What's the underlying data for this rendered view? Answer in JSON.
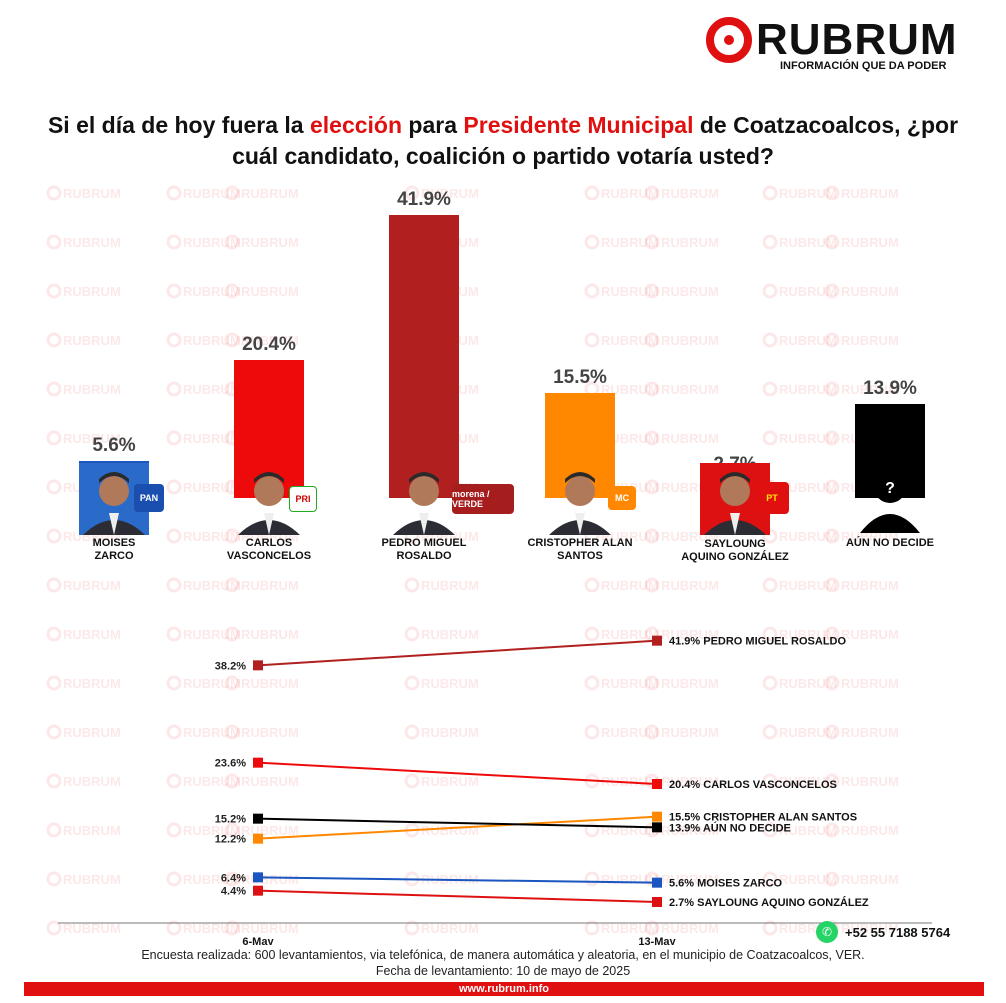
{
  "brand": {
    "name": "RUBRUM",
    "tagline": "INFORMACIÓN QUE DA PODER",
    "watermark_text": "RUBRUM",
    "accent": "#e01010"
  },
  "question": {
    "part1": "Si el día de hoy fuera la ",
    "highlight1": "elección",
    "part2": " para ",
    "highlight2": "Presidente Municipal",
    "part3": " de Coatzacoalcos, ¿por cuál candidato, coalición o partido votaría usted?"
  },
  "chart_data": [
    {
      "type": "bar",
      "categories": [
        "MOISES ZARCO",
        "CARLOS VASCONCELOS",
        "PEDRO MIGUEL ROSALDO",
        "CRISTOPHER ALAN SANTOS",
        "SAYLOUNG AQUINO GONZÁLEZ",
        "AÚN NO DECIDE"
      ],
      "labels": [
        [
          "MOISES",
          "ZARCO"
        ],
        [
          "CARLOS",
          "VASCONCELOS"
        ],
        [
          "PEDRO MIGUEL",
          "ROSALDO"
        ],
        [
          "CRISTOPHER ALAN",
          "SANTOS"
        ],
        [
          "SAYLOUNG",
          "AQUINO GONZÁLEZ"
        ],
        [
          "AÚN NO DECIDE"
        ]
      ],
      "values": [
        5.6,
        20.4,
        41.9,
        15.5,
        2.7,
        13.9
      ],
      "value_labels": [
        "5.6%",
        "20.4%",
        "41.9%",
        "15.5%",
        "2.7%",
        "13.9%"
      ],
      "colors": [
        "#1a55c0",
        "#ee0a0a",
        "#b21f1f",
        "#ff8800",
        "#dd1111",
        "#000000"
      ],
      "parties": [
        "PAN",
        "PRI",
        "morena / VERDE",
        "MC",
        "PT",
        ""
      ],
      "ylim": [
        0,
        41.9
      ]
    },
    {
      "type": "line",
      "x": [
        "6-May",
        "13-May"
      ],
      "ylim": [
        0,
        45
      ],
      "series": [
        {
          "name": "PEDRO MIGUEL ROSALDO",
          "values": [
            38.2,
            41.9
          ],
          "labels": [
            "38.2%",
            "41.9%"
          ],
          "color": "#b21f1f"
        },
        {
          "name": "CARLOS VASCONCELOS",
          "values": [
            23.6,
            20.4
          ],
          "labels": [
            "23.6%",
            "20.4%"
          ],
          "color": "#ee0a0a"
        },
        {
          "name": "CRISTOPHER ALAN SANTOS",
          "values": [
            12.2,
            15.5
          ],
          "labels": [
            "12.2%",
            "15.5%"
          ],
          "color": "#ff8800"
        },
        {
          "name": "AÚN NO DECIDE",
          "values": [
            15.2,
            13.9
          ],
          "labels": [
            "15.2%",
            "13.9%"
          ],
          "color": "#000000"
        },
        {
          "name": "MOISES ZARCO",
          "values": [
            6.4,
            5.6
          ],
          "labels": [
            "6.4%",
            "5.6%"
          ],
          "color": "#1a55c0"
        },
        {
          "name": "SAYLOUNG AQUINO GONZÁLEZ",
          "values": [
            4.4,
            2.7
          ],
          "labels": [
            "4.4%",
            "2.7%"
          ],
          "color": "#dd1111"
        }
      ]
    }
  ],
  "contact": {
    "whatsapp": "+52 55 7188 5764"
  },
  "footer": {
    "line1": "Encuesta realizada: 600 levantamientos, via telefónica, de manera automática y aleatoria, en el municipio de Coatzacoalcos, VER.",
    "line2": "Fecha de levantamiento: 10 de mayo de 2025",
    "website": "www.rubrum.info"
  }
}
